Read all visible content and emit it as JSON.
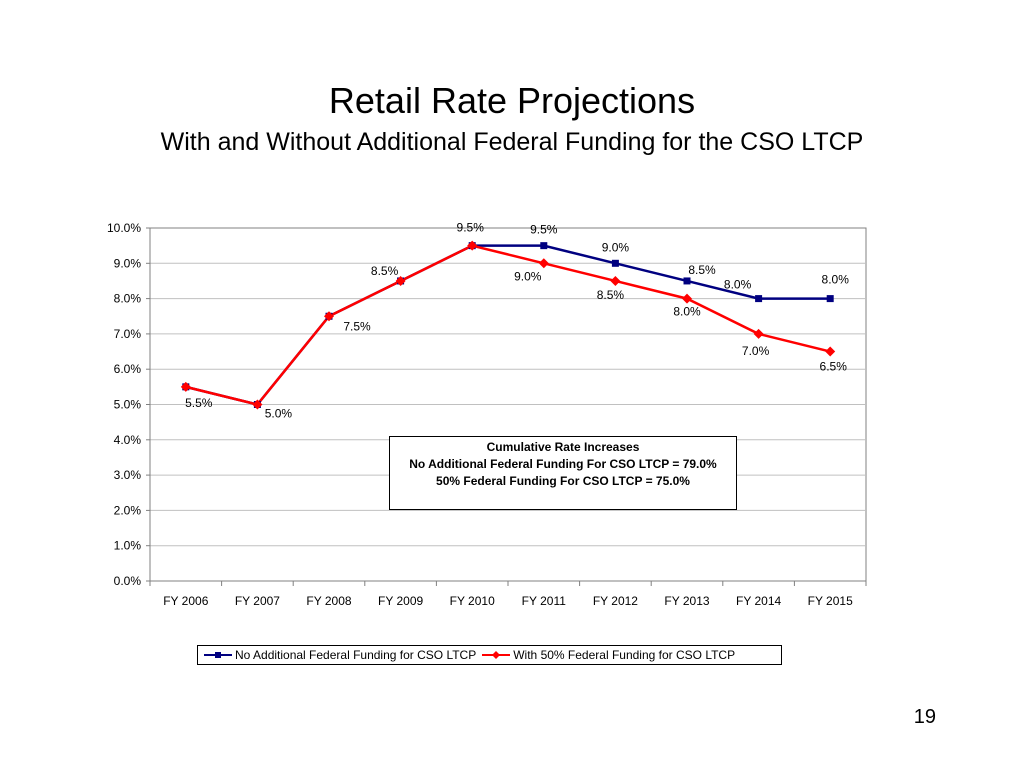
{
  "slide": {
    "title": "Retail Rate Projections",
    "subtitle": "With and Without Additional Federal Funding for the CSO LTCP",
    "page_number": "19"
  },
  "note_box": {
    "lines": [
      "Cumulative Rate Increases",
      "No Additional Federal Funding For CSO LTCP = 79.0%",
      "50% Federal Funding For CSO LTCP = 75.0%"
    ]
  },
  "chart_data": {
    "type": "line",
    "title": "",
    "xlabel": "",
    "ylabel": "",
    "categories": [
      "FY 2006",
      "FY 2007",
      "FY 2008",
      "FY 2009",
      "FY 2010",
      "FY 2011",
      "FY 2012",
      "FY 2013",
      "FY 2014",
      "FY 2015"
    ],
    "ylim": [
      0,
      10
    ],
    "yticks": [
      "0.0%",
      "1.0%",
      "2.0%",
      "3.0%",
      "4.0%",
      "5.0%",
      "6.0%",
      "7.0%",
      "8.0%",
      "9.0%",
      "10.0%"
    ],
    "grid": true,
    "legend_position": "bottom",
    "series": [
      {
        "name": "No Additional Federal Funding for CSO LTCP",
        "color": "#000080",
        "marker": "square",
        "values": [
          5.5,
          5.0,
          7.5,
          8.5,
          9.5,
          9.5,
          9.0,
          8.5,
          8.0,
          8.0
        ],
        "labels": [
          null,
          null,
          null,
          null,
          null,
          "9.5%",
          "9.0%",
          "8.5%",
          "8.0%",
          "8.0%"
        ]
      },
      {
        "name": "With 50% Federal Funding for CSO LTCP",
        "color": "#ff0000",
        "marker": "diamond",
        "values": [
          5.5,
          5.0,
          7.5,
          8.5,
          9.5,
          9.0,
          8.5,
          8.0,
          7.0,
          6.5
        ],
        "labels": [
          "5.5%",
          "5.0%",
          "7.5%",
          "8.5%",
          "9.5%",
          "9.0%",
          "8.5%",
          "8.0%",
          "7.0%",
          "6.5%"
        ]
      }
    ]
  }
}
